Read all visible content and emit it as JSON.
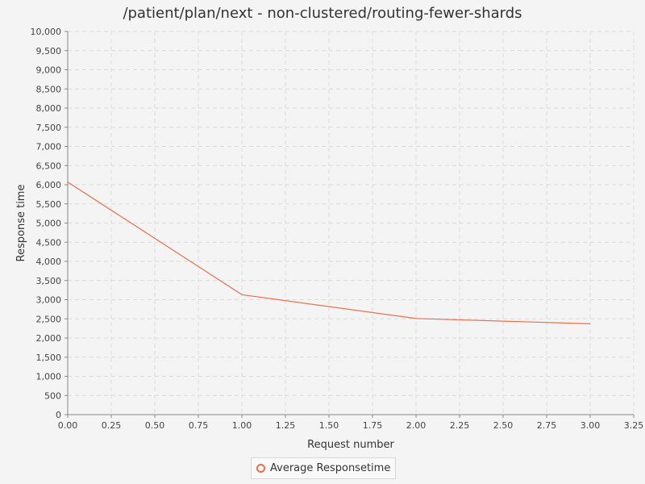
{
  "chart_data": {
    "type": "line",
    "title": "/patient/plan/next - non-clustered/routing-fewer-shards",
    "xlabel": "Request number",
    "ylabel": "Response time",
    "xlim": [
      0,
      3.25
    ],
    "ylim": [
      0,
      10000
    ],
    "x_ticks": [
      "0.00",
      "0.25",
      "0.50",
      "0.75",
      "1.00",
      "1.25",
      "1.50",
      "1.75",
      "2.00",
      "2.25",
      "2.50",
      "2.75",
      "3.00",
      "3.25"
    ],
    "y_ticks": [
      "0",
      "500",
      "1,000",
      "1,500",
      "2,000",
      "2,500",
      "3,000",
      "3,500",
      "4,000",
      "4,500",
      "5,000",
      "5,500",
      "6,000",
      "6,500",
      "7,000",
      "7,500",
      "8,000",
      "8,500",
      "9,000",
      "9,500",
      "10,000"
    ],
    "grid": true,
    "legend_position": "bottom-center",
    "series": [
      {
        "name": "Average Responsetime",
        "color": "#e8704a",
        "x": [
          0,
          1,
          2,
          3
        ],
        "values": [
          6070,
          3130,
          2510,
          2370
        ]
      }
    ]
  }
}
